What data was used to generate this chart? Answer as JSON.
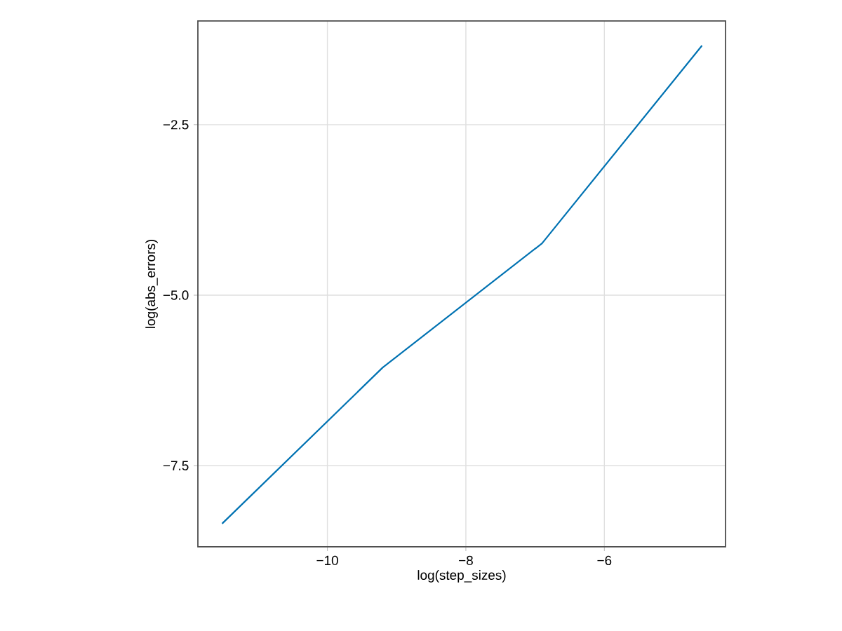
{
  "chart_data": {
    "type": "line",
    "xlabel": "log(step_sizes)",
    "ylabel": "log(abs_errors)",
    "x": [
      -11.52,
      -9.2,
      -6.9,
      -4.59
    ],
    "series": [
      {
        "color": "#0072b2",
        "values": [
          -8.35,
          -6.06,
          -4.24,
          -1.34
        ]
      }
    ],
    "xlim": [
      -11.87,
      -4.25
    ],
    "ylim": [
      -8.69,
      -0.98
    ],
    "xticks": [
      {
        "value": -10,
        "label": "−10"
      },
      {
        "value": -8,
        "label": "−8"
      },
      {
        "value": -6,
        "label": "−6"
      }
    ],
    "yticks": [
      {
        "value": -7.5,
        "label": "−7.5"
      },
      {
        "value": -5.0,
        "label": "−5.0"
      },
      {
        "value": -2.5,
        "label": "−2.5"
      }
    ],
    "grid": true
  }
}
